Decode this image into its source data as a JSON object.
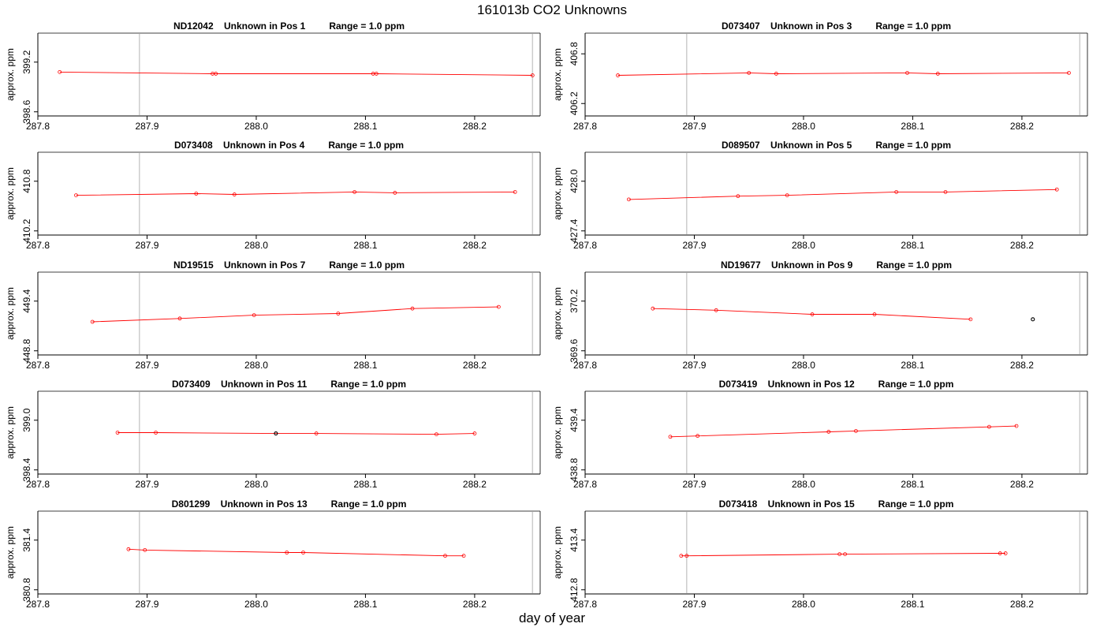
{
  "figure": {
    "title": "161013b  CO2 Unknowns",
    "xlabel": "day of year"
  },
  "colors": {
    "series": "#ff0000",
    "highlight_point": "#000000",
    "reference_line": "#cccccc",
    "axis": "#000000"
  },
  "chart_data": [
    {
      "type": "line",
      "title": "ND12042    Unknown in Pos 1         Range = 1.0 ppm",
      "xlabel": "day of year",
      "ylabel": "approx. ppm",
      "xlim": [
        287.8,
        288.26
      ],
      "ylim": [
        398.55,
        399.55
      ],
      "xticks": [
        287.8,
        287.9,
        288.0,
        288.1,
        288.2
      ],
      "xtick_labels": [
        "287.8",
        "287.9",
        "288.0",
        "288.1",
        "288.2"
      ],
      "yticks": [
        398.6,
        399.2
      ],
      "ytick_labels": [
        "398.6",
        "399.2"
      ],
      "vlines": [
        287.893,
        288.253
      ],
      "x": [
        287.82,
        287.96,
        287.963,
        288.107,
        288.11,
        288.253
      ],
      "y": [
        399.08,
        399.06,
        399.06,
        399.06,
        399.06,
        399.04
      ],
      "highlight_index": null
    },
    {
      "type": "line",
      "title": "D073407    Unknown in Pos 3         Range = 1.0 ppm",
      "xlabel": "day of year",
      "ylabel": "approx. ppm",
      "xlim": [
        287.8,
        288.26
      ],
      "ylim": [
        406.05,
        407.05
      ],
      "xticks": [
        287.8,
        287.9,
        288.0,
        288.1,
        288.2
      ],
      "xtick_labels": [
        "287.8",
        "287.9",
        "288.0",
        "288.1",
        "288.2"
      ],
      "yticks": [
        406.2,
        406.8
      ],
      "ytick_labels": [
        "406.2",
        "406.8"
      ],
      "vlines": [
        287.893,
        288.253
      ],
      "x": [
        287.83,
        287.95,
        287.975,
        288.095,
        288.123,
        288.243
      ],
      "y": [
        406.54,
        406.57,
        406.56,
        406.57,
        406.56,
        406.57
      ],
      "highlight_index": null
    },
    {
      "type": "line",
      "title": "D073408    Unknown in Pos 4         Range = 1.0 ppm",
      "xlabel": "day of year",
      "ylabel": "approx. ppm",
      "xlim": [
        287.8,
        288.26
      ],
      "ylim": [
        410.15,
        411.15
      ],
      "xticks": [
        287.8,
        287.9,
        288.0,
        288.1,
        288.2
      ],
      "xtick_labels": [
        "287.8",
        "287.9",
        "288.0",
        "288.1",
        "288.2"
      ],
      "yticks": [
        410.2,
        410.8
      ],
      "ytick_labels": [
        "410.2",
        "410.8"
      ],
      "vlines": [
        287.893,
        288.253
      ],
      "x": [
        287.835,
        287.945,
        287.98,
        288.09,
        288.127,
        288.237
      ],
      "y": [
        410.63,
        410.65,
        410.64,
        410.67,
        410.66,
        410.67
      ],
      "highlight_index": null
    },
    {
      "type": "line",
      "title": "D089507    Unknown in Pos 5         Range = 1.0 ppm",
      "xlabel": "day of year",
      "ylabel": "approx. ppm",
      "xlim": [
        287.8,
        288.26
      ],
      "ylim": [
        427.35,
        428.35
      ],
      "xticks": [
        287.8,
        287.9,
        288.0,
        288.1,
        288.2
      ],
      "xtick_labels": [
        "287.8",
        "287.9",
        "288.0",
        "288.1",
        "288.2"
      ],
      "yticks": [
        427.4,
        428.0
      ],
      "ytick_labels": [
        "427.4",
        "428.0"
      ],
      "vlines": [
        287.893,
        288.253
      ],
      "x": [
        287.84,
        287.94,
        287.985,
        288.085,
        288.13,
        288.232
      ],
      "y": [
        427.78,
        427.82,
        427.83,
        427.87,
        427.87,
        427.9
      ],
      "highlight_index": null
    },
    {
      "type": "line",
      "title": "ND19515    Unknown in Pos 7         Range = 1.0 ppm",
      "xlabel": "day of year",
      "ylabel": "approx. ppm",
      "xlim": [
        287.8,
        288.26
      ],
      "ylim": [
        448.75,
        449.75
      ],
      "xticks": [
        287.8,
        287.9,
        288.0,
        288.1,
        288.2
      ],
      "xtick_labels": [
        "287.8",
        "287.9",
        "288.0",
        "288.1",
        "288.2"
      ],
      "yticks": [
        448.8,
        449.4
      ],
      "ytick_labels": [
        "448.8",
        "449.4"
      ],
      "vlines": [
        287.893,
        288.253
      ],
      "x": [
        287.85,
        287.93,
        287.998,
        288.075,
        288.143,
        288.222
      ],
      "y": [
        449.15,
        449.19,
        449.23,
        449.25,
        449.31,
        449.33
      ],
      "highlight_index": null
    },
    {
      "type": "line",
      "title": "ND19677    Unknown in Pos 9         Range = 1.0 ppm",
      "xlabel": "day of year",
      "ylabel": "approx. ppm",
      "xlim": [
        287.8,
        288.26
      ],
      "ylim": [
        369.55,
        370.55
      ],
      "xticks": [
        287.8,
        287.9,
        288.0,
        288.1,
        288.2
      ],
      "xtick_labels": [
        "287.8",
        "287.9",
        "288.0",
        "288.1",
        "288.2"
      ],
      "yticks": [
        369.6,
        370.2
      ],
      "ytick_labels": [
        "369.6",
        "370.2"
      ],
      "vlines": [
        287.893,
        288.253
      ],
      "x": [
        287.862,
        287.92,
        288.008,
        288.065,
        288.153,
        288.21
      ],
      "y": [
        370.11,
        370.09,
        370.04,
        370.04,
        369.98,
        369.98
      ],
      "connected": [
        true,
        true,
        true,
        true,
        true,
        false
      ],
      "highlight_index": 5
    },
    {
      "type": "line",
      "title": "D073409    Unknown in Pos 11         Range = 1.0 ppm",
      "xlabel": "day of year",
      "ylabel": "approx. ppm",
      "xlim": [
        287.8,
        288.26
      ],
      "ylim": [
        398.35,
        399.35
      ],
      "xticks": [
        287.8,
        287.9,
        288.0,
        288.1,
        288.2
      ],
      "xtick_labels": [
        "287.8",
        "287.9",
        "288.0",
        "288.1",
        "288.2"
      ],
      "yticks": [
        398.4,
        399.0
      ],
      "ytick_labels": [
        "398.4",
        "399.0"
      ],
      "vlines": [
        287.893,
        288.253
      ],
      "x": [
        287.873,
        287.908,
        288.018,
        288.055,
        288.165,
        288.2
      ],
      "y": [
        398.85,
        398.85,
        398.84,
        398.84,
        398.83,
        398.84
      ],
      "highlight_index": 2
    },
    {
      "type": "line",
      "title": "D073419    Unknown in Pos 12         Range = 1.0 ppm",
      "xlabel": "day of year",
      "ylabel": "approx. ppm",
      "xlim": [
        287.8,
        288.26
      ],
      "ylim": [
        438.75,
        439.75
      ],
      "xticks": [
        287.8,
        287.9,
        288.0,
        288.1,
        288.2
      ],
      "xtick_labels": [
        "287.8",
        "287.9",
        "288.0",
        "288.1",
        "288.2"
      ],
      "yticks": [
        438.8,
        439.4
      ],
      "ytick_labels": [
        "438.8",
        "439.4"
      ],
      "vlines": [
        287.893,
        288.253
      ],
      "x": [
        287.878,
        287.903,
        288.023,
        288.048,
        288.17,
        288.195
      ],
      "y": [
        439.2,
        439.21,
        439.26,
        439.27,
        439.32,
        439.33
      ],
      "highlight_index": null
    },
    {
      "type": "line",
      "title": "D801299    Unknown in Pos 13         Range = 1.0 ppm",
      "xlabel": "day of year",
      "ylabel": "approx. ppm",
      "xlim": [
        287.8,
        288.26
      ],
      "ylim": [
        380.75,
        381.75
      ],
      "xticks": [
        287.8,
        287.9,
        288.0,
        288.1,
        288.2
      ],
      "xtick_labels": [
        "287.8",
        "287.9",
        "288.0",
        "288.1",
        "288.2"
      ],
      "yticks": [
        380.8,
        381.4
      ],
      "ytick_labels": [
        "380.8",
        "381.4"
      ],
      "vlines": [
        287.893,
        288.253
      ],
      "x": [
        287.883,
        287.898,
        288.028,
        288.043,
        288.173,
        288.19
      ],
      "y": [
        381.29,
        381.28,
        381.25,
        381.25,
        381.21,
        381.21
      ],
      "highlight_index": null
    },
    {
      "type": "line",
      "title": "D073418    Unknown in Pos 15         Range = 1.0 ppm",
      "xlabel": "day of year",
      "ylabel": "approx. ppm",
      "xlim": [
        287.8,
        288.26
      ],
      "ylim": [
        412.75,
        413.75
      ],
      "xticks": [
        287.8,
        287.9,
        288.0,
        288.1,
        288.2
      ],
      "xtick_labels": [
        "287.8",
        "287.9",
        "288.0",
        "288.1",
        "288.2"
      ],
      "yticks": [
        412.8,
        413.4
      ],
      "ytick_labels": [
        "412.8",
        "413.4"
      ],
      "vlines": [
        287.893,
        288.253
      ],
      "x": [
        287.888,
        287.893,
        288.033,
        288.038,
        288.18,
        288.185
      ],
      "y": [
        413.21,
        413.21,
        413.23,
        413.23,
        413.24,
        413.24
      ],
      "highlight_index": null
    }
  ]
}
